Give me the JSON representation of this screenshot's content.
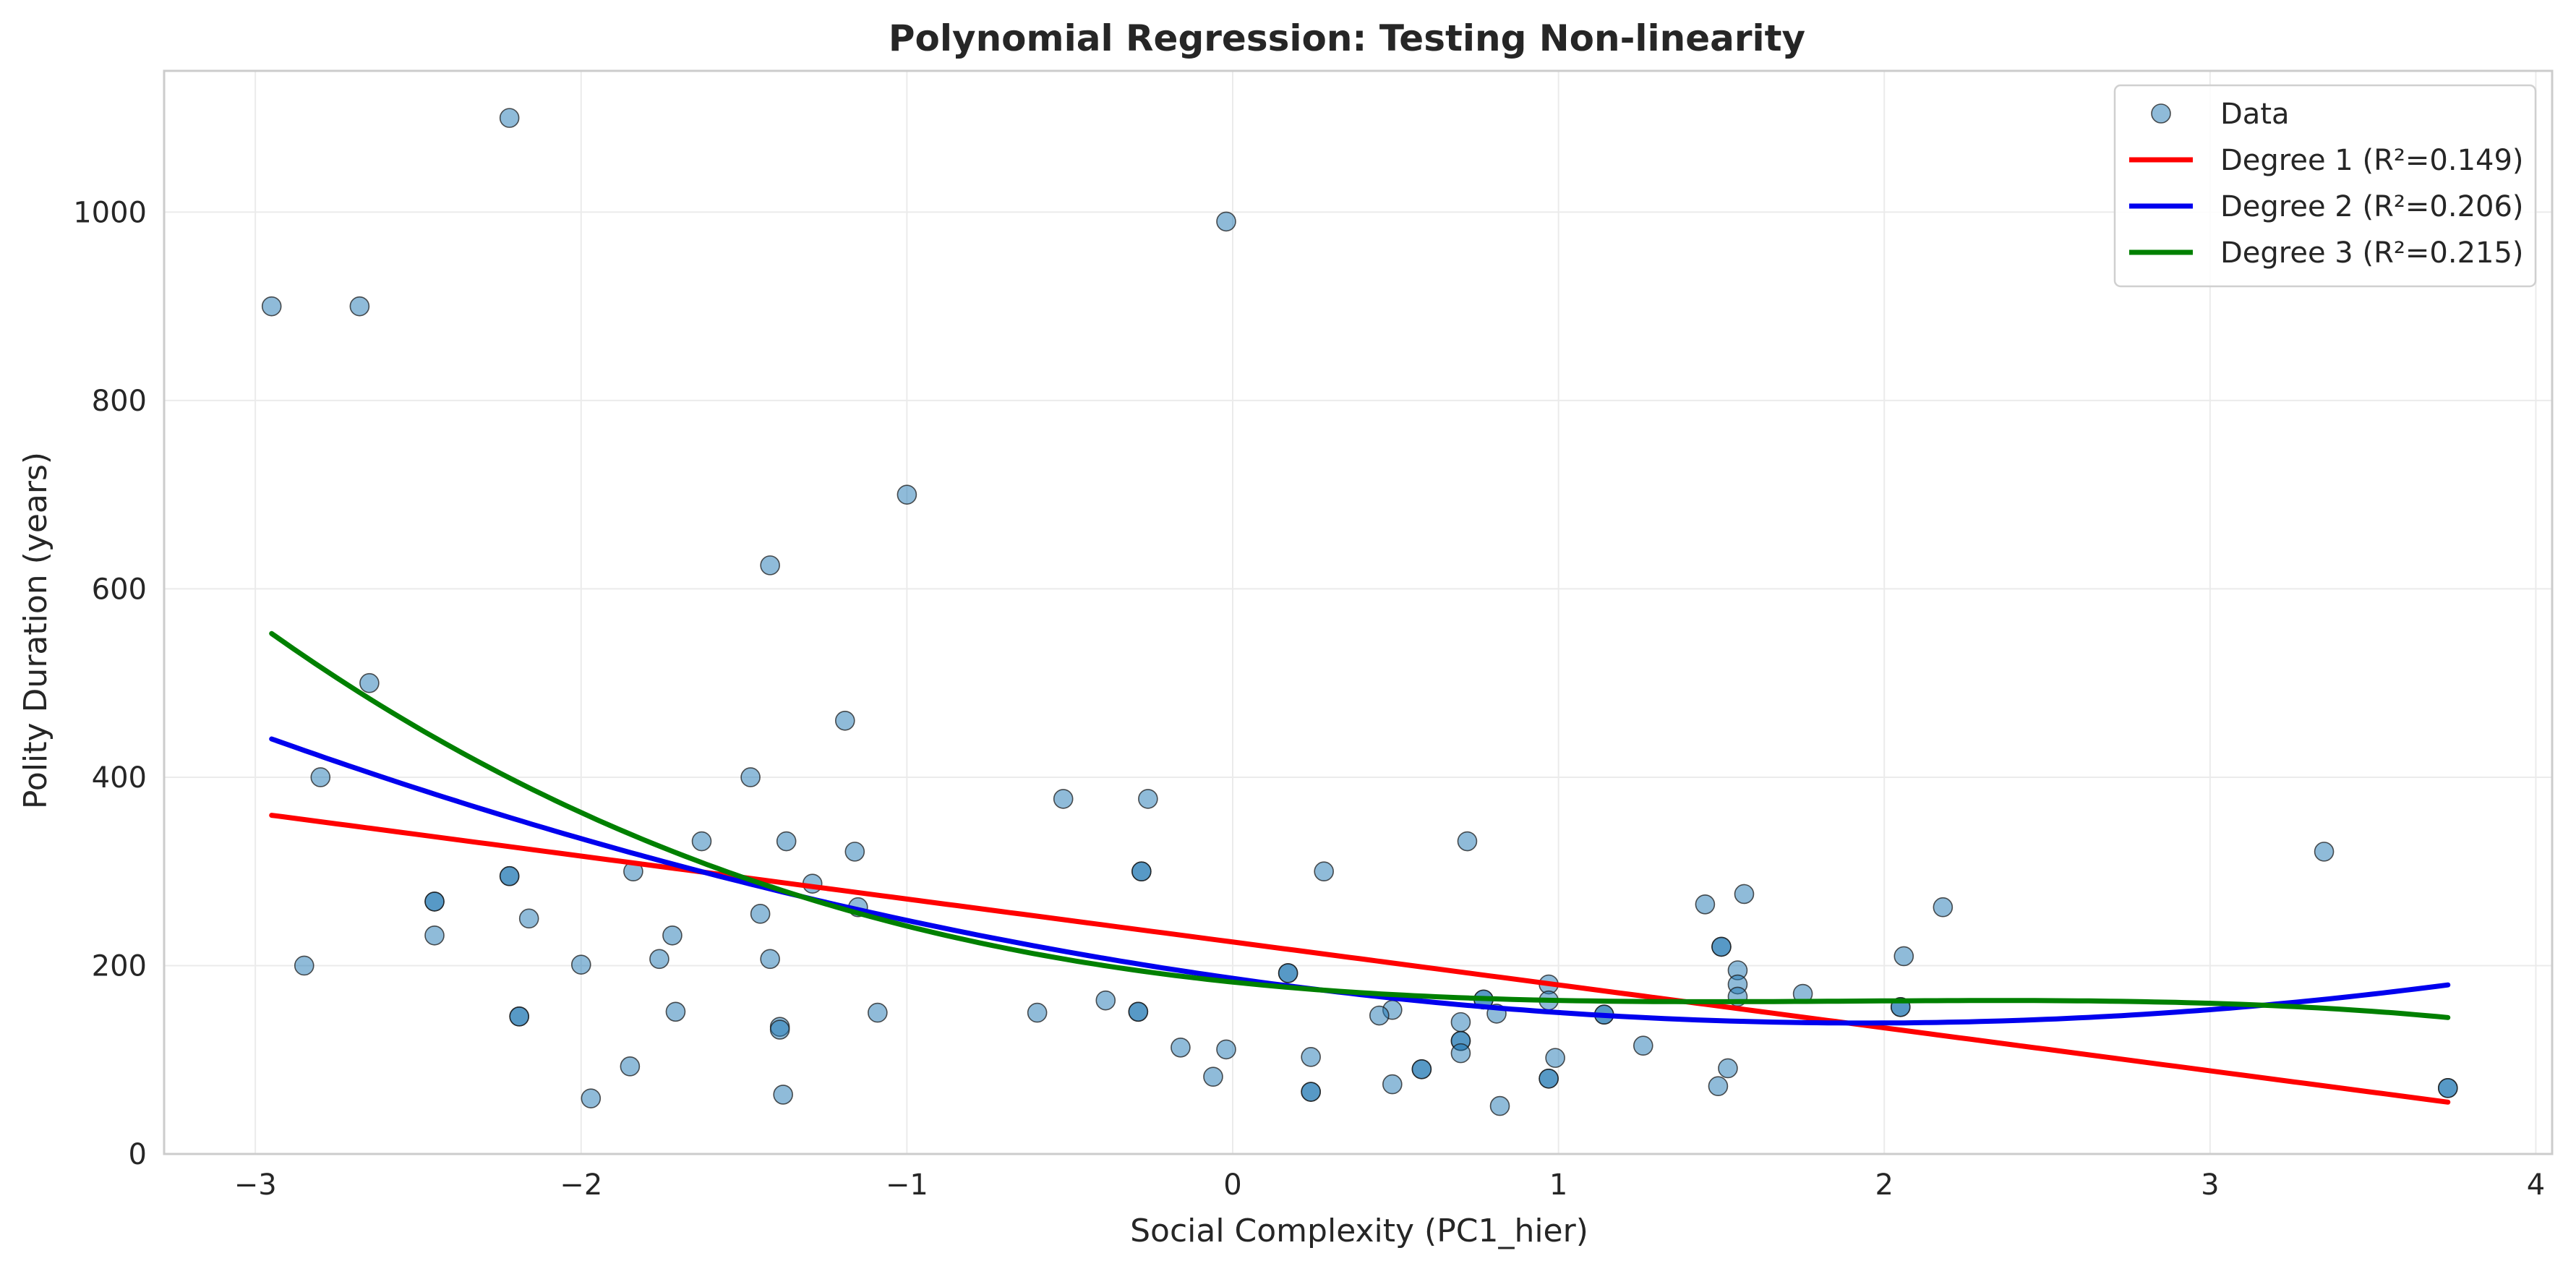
{
  "chart_data": {
    "type": "scatter",
    "title": "Polynomial Regression: Testing Non-linearity",
    "xlabel": "Social Complexity (PC1_hier)",
    "ylabel": "Polity Duration (years)",
    "xlim": [
      -3.28,
      4.05
    ],
    "ylim": [
      0,
      1150
    ],
    "xticks": [
      -3,
      -2,
      -1,
      0,
      1,
      2,
      3,
      4
    ],
    "yticks": [
      0,
      200,
      400,
      600,
      800,
      1000
    ],
    "xtick_labels": [
      "−3",
      "−2",
      "−1",
      "0",
      "1",
      "2",
      "3",
      "4"
    ],
    "ytick_labels": [
      "0",
      "200",
      "400",
      "600",
      "800",
      "1000"
    ],
    "grid": true,
    "legend_position": "top-right",
    "colors": {
      "points": "#1f77b4",
      "degree1": "#ff0000",
      "degree2": "#0000ee",
      "degree3": "#008000",
      "grid": "#ebebeb",
      "spine": "#cccccc"
    },
    "series": [
      {
        "name": "Data",
        "type": "scatter",
        "points": [
          [
            -2.95,
            900
          ],
          [
            -2.68,
            900
          ],
          [
            -2.22,
            1100
          ],
          [
            -0.02,
            990
          ],
          [
            -1.0,
            700
          ],
          [
            -1.42,
            625
          ],
          [
            -2.65,
            500
          ],
          [
            -1.19,
            460
          ],
          [
            -2.8,
            400
          ],
          [
            -1.48,
            400
          ],
          [
            -0.52,
            377
          ],
          [
            -0.26,
            377
          ],
          [
            -1.63,
            332
          ],
          [
            -1.37,
            332
          ],
          [
            0.72,
            332
          ],
          [
            -1.16,
            321
          ],
          [
            3.35,
            321
          ],
          [
            -0.28,
            300
          ],
          [
            -0.28,
            300
          ],
          [
            0.28,
            300
          ],
          [
            -1.84,
            300
          ],
          [
            -2.22,
            295
          ],
          [
            -2.22,
            295
          ],
          [
            -1.29,
            287
          ],
          [
            1.57,
            276
          ],
          [
            -2.45,
            268
          ],
          [
            -2.45,
            268
          ],
          [
            1.45,
            265
          ],
          [
            -1.15,
            262
          ],
          [
            2.18,
            262
          ],
          [
            -1.45,
            255
          ],
          [
            -2.16,
            250
          ],
          [
            -2.45,
            232
          ],
          [
            -1.72,
            232
          ],
          [
            1.5,
            220
          ],
          [
            1.5,
            220
          ],
          [
            2.06,
            210
          ],
          [
            -1.42,
            207
          ],
          [
            -1.76,
            207
          ],
          [
            -2.0,
            201
          ],
          [
            -2.85,
            200
          ],
          [
            1.55,
            195
          ],
          [
            0.17,
            192
          ],
          [
            0.17,
            192
          ],
          [
            0.97,
            180
          ],
          [
            1.55,
            180
          ],
          [
            1.75,
            170
          ],
          [
            1.55,
            167
          ],
          [
            0.77,
            164
          ],
          [
            0.77,
            164
          ],
          [
            -0.39,
            163
          ],
          [
            0.97,
            163
          ],
          [
            2.05,
            156
          ],
          [
            2.05,
            156
          ],
          [
            0.49,
            153
          ],
          [
            -0.29,
            151
          ],
          [
            -0.29,
            151
          ],
          [
            -1.71,
            151
          ],
          [
            -1.09,
            150
          ],
          [
            -0.6,
            150
          ],
          [
            0.81,
            149
          ],
          [
            1.14,
            148
          ],
          [
            1.14,
            148
          ],
          [
            0.45,
            147
          ],
          [
            -2.19,
            146
          ],
          [
            -2.19,
            146
          ],
          [
            0.7,
            140
          ],
          [
            -1.39,
            135
          ],
          [
            -1.39,
            132
          ],
          [
            0.7,
            120
          ],
          [
            0.7,
            120
          ],
          [
            1.26,
            115
          ],
          [
            -0.16,
            113
          ],
          [
            -0.02,
            111
          ],
          [
            0.7,
            107
          ],
          [
            0.24,
            103
          ],
          [
            0.99,
            102
          ],
          [
            -1.85,
            93
          ],
          [
            1.52,
            91
          ],
          [
            0.58,
            90
          ],
          [
            0.58,
            90
          ],
          [
            -0.06,
            82
          ],
          [
            0.97,
            80
          ],
          [
            0.97,
            80
          ],
          [
            0.49,
            74
          ],
          [
            1.49,
            72
          ],
          [
            3.73,
            70
          ],
          [
            3.73,
            70
          ],
          [
            0.24,
            66
          ],
          [
            0.24,
            66
          ],
          [
            -1.38,
            63
          ],
          [
            -1.97,
            59
          ],
          [
            0.82,
            51
          ]
        ]
      },
      {
        "name": "Degree 1 (R²=0.149)",
        "type": "line",
        "degree": 1,
        "x_range": [
          -2.95,
          3.73
        ],
        "coefficients": [
          225.1,
          -45.6
        ]
      },
      {
        "name": "Degree 2 (R²=0.206)",
        "type": "line",
        "degree": 2,
        "x_range": [
          -2.95,
          3.73
        ],
        "coefficients": [
          186.48,
          -48.94,
          12.62
        ]
      },
      {
        "name": "Degree 3 (R²=0.215)",
        "type": "line",
        "degree": 3,
        "x_range": [
          -2.95,
          3.73
        ],
        "coefficients": [
          182.5,
          -36.0,
          20.0,
          -3.5
        ]
      }
    ]
  }
}
